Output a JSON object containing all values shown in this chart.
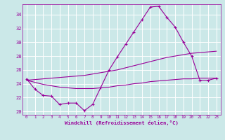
{
  "bg_color": "#cbe8e8",
  "grid_color": "#ffffff",
  "line_color": "#990099",
  "xlabel": "Windchill (Refroidissement éolien,°C)",
  "xlim": [
    -0.5,
    23.5
  ],
  "ylim": [
    19.5,
    35.5
  ],
  "yticks": [
    20,
    22,
    24,
    26,
    28,
    30,
    32,
    34
  ],
  "xticks": [
    0,
    1,
    2,
    3,
    4,
    5,
    6,
    7,
    8,
    9,
    10,
    11,
    12,
    13,
    14,
    15,
    16,
    17,
    18,
    19,
    20,
    21,
    22,
    23
  ],
  "line1_x": [
    0,
    1,
    2,
    3,
    4,
    5,
    6,
    7,
    8,
    9,
    10,
    11,
    12,
    13,
    14,
    15,
    16,
    17,
    18,
    19,
    20,
    21,
    22,
    23
  ],
  "line1_y": [
    24.7,
    23.2,
    22.3,
    22.2,
    21.0,
    21.2,
    21.2,
    20.1,
    21.0,
    23.5,
    26.0,
    27.9,
    29.7,
    31.5,
    33.3,
    35.1,
    35.2,
    33.6,
    32.2,
    30.0,
    28.0,
    24.5,
    24.5,
    24.8
  ],
  "line2_x": [
    0,
    1,
    2,
    3,
    4,
    5,
    6,
    7,
    8,
    9,
    10,
    11,
    12,
    13,
    14,
    15,
    16,
    17,
    18,
    19,
    20,
    21,
    22,
    23
  ],
  "line2_y": [
    24.5,
    24.6,
    24.7,
    24.8,
    24.9,
    25.0,
    25.1,
    25.2,
    25.4,
    25.6,
    25.8,
    26.0,
    26.3,
    26.6,
    26.9,
    27.2,
    27.5,
    27.8,
    28.0,
    28.2,
    28.4,
    28.5,
    28.6,
    28.7
  ],
  "line3_x": [
    0,
    1,
    2,
    3,
    4,
    5,
    6,
    7,
    8,
    9,
    10,
    11,
    12,
    13,
    14,
    15,
    16,
    17,
    18,
    19,
    20,
    21,
    22,
    23
  ],
  "line3_y": [
    24.5,
    24.2,
    23.9,
    23.7,
    23.5,
    23.4,
    23.3,
    23.3,
    23.3,
    23.4,
    23.5,
    23.7,
    23.8,
    24.0,
    24.1,
    24.3,
    24.4,
    24.5,
    24.6,
    24.7,
    24.7,
    24.8,
    24.8,
    24.8
  ]
}
